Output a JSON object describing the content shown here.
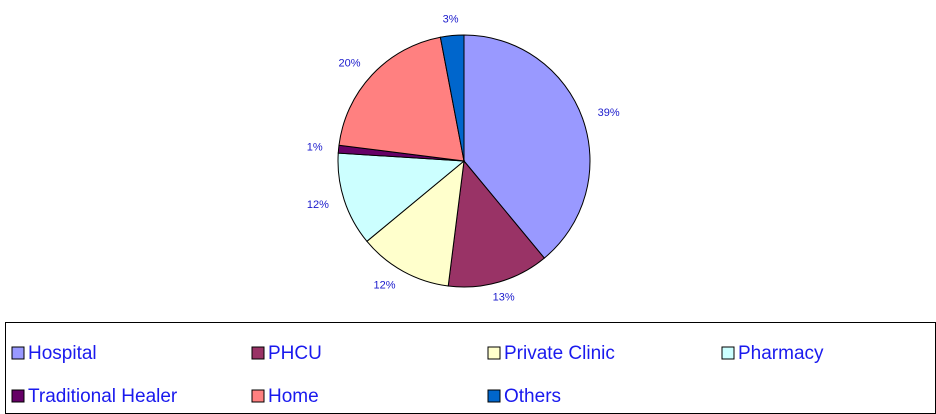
{
  "chart_data": {
    "type": "pie",
    "categories": [
      "Hospital",
      "PHCU",
      "Private Clinic",
      "Pharmacy",
      "Traditional Healer",
      "Home",
      "Others"
    ],
    "values": [
      39,
      13,
      12,
      12,
      1,
      20,
      3
    ],
    "value_labels": [
      "39%",
      "13%",
      "12%",
      "12%",
      "1%",
      "20%",
      "3%"
    ],
    "colors": [
      "#9999ff",
      "#993366",
      "#ffffcc",
      "#ccffff",
      "#660066",
      "#ff8080",
      "#0066cc"
    ]
  }
}
